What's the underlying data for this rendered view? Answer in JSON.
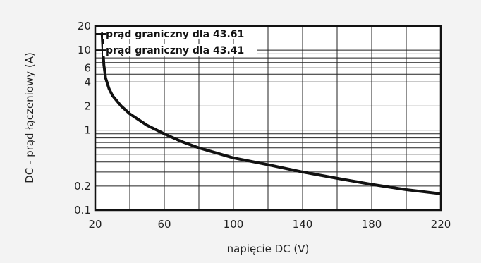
{
  "chart_data": {
    "type": "line",
    "title": "",
    "xlabel": "napięcie DC (V)",
    "ylabel": "DC - prąd łączeniowy (A)",
    "xlim": [
      20,
      220
    ],
    "ylim": [
      0.1,
      20
    ],
    "y_scale": "log",
    "grid": true,
    "x_ticks": [
      20,
      60,
      100,
      140,
      180,
      220
    ],
    "y_ticks": [
      0.1,
      0.2,
      1,
      2,
      4,
      6,
      10,
      20
    ],
    "annotations": [
      {
        "text": "prąd graniczny dla 43.61",
        "y": 16
      },
      {
        "text": "prąd graniczny dla 43.41",
        "y": 10
      }
    ],
    "series": [
      {
        "color": "#111111",
        "x": [
          24,
          24.5,
          25,
          26,
          28,
          30,
          35,
          40,
          50,
          60,
          70,
          80,
          100,
          120,
          140,
          160,
          180,
          200,
          220
        ],
        "y": [
          16,
          10,
          6.5,
          4.5,
          3.3,
          2.7,
          2.0,
          1.6,
          1.15,
          0.9,
          0.72,
          0.6,
          0.45,
          0.37,
          0.3,
          0.25,
          0.21,
          0.18,
          0.16
        ]
      }
    ]
  }
}
